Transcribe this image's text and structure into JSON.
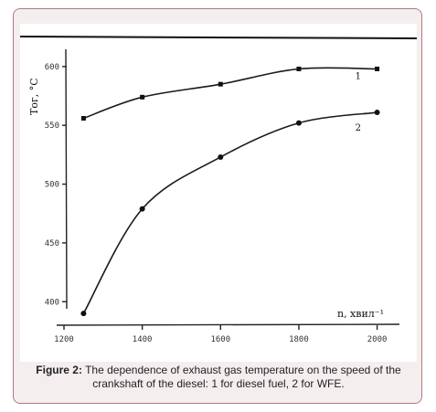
{
  "caption": {
    "label": "Figure 2:",
    "text": "The dependence of exhaust gas temperature on the speed of the crankshaft of the diesel: 1 for diesel fuel, 2 for WFE."
  },
  "chart_data": {
    "type": "line",
    "title": "",
    "xlabel": "n, хвил⁻¹",
    "ylabel": "Tог, °C",
    "xlim": [
      1200,
      2050
    ],
    "ylim": [
      380,
      610
    ],
    "x_ticks": [
      "1200",
      "1400",
      "1600",
      "1800",
      "2000"
    ],
    "y_ticks": [
      "400",
      "450",
      "500",
      "550",
      "600"
    ],
    "grid": false,
    "series": [
      {
        "name": "1",
        "marker": "square",
        "points": [
          {
            "x": 1250,
            "y": 556
          },
          {
            "x": 1400,
            "y": 574
          },
          {
            "x": 1600,
            "y": 585
          },
          {
            "x": 1800,
            "y": 598
          },
          {
            "x": 2000,
            "y": 598
          }
        ]
      },
      {
        "name": "2",
        "marker": "circle",
        "points": [
          {
            "x": 1250,
            "y": 390
          },
          {
            "x": 1400,
            "y": 479
          },
          {
            "x": 1600,
            "y": 523
          },
          {
            "x": 1800,
            "y": 552
          },
          {
            "x": 2000,
            "y": 561
          }
        ]
      }
    ]
  }
}
